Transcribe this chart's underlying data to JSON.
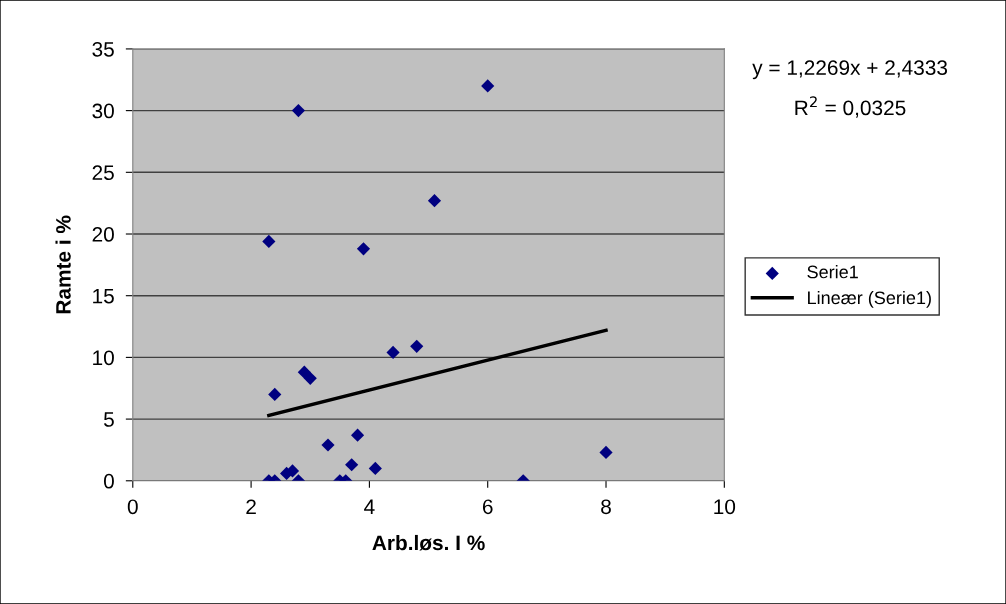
{
  "chart_data": {
    "type": "scatter",
    "xlabel": "Arb.løs. I %",
    "ylabel": "Ramte i %",
    "xlim": [
      0,
      10
    ],
    "xticks": [
      0,
      2,
      4,
      6,
      8,
      10
    ],
    "ylim": [
      0,
      35
    ],
    "yticks": [
      0,
      5,
      10,
      15,
      20,
      25,
      30,
      35
    ],
    "grid": "y",
    "legend": "right",
    "marker": "diamond",
    "annotations": [
      "y = 1,2269x + 2,4333",
      "R$^{2}$ = 0,0325"
    ],
    "series": [
      {
        "name": "Serie1",
        "color": "#000080",
        "x": [
          2.8,
          6.0,
          5.1,
          2.3,
          3.9,
          4.4,
          4.8,
          2.9,
          3.0,
          2.4,
          3.3,
          3.8,
          3.7,
          4.1,
          8.0,
          6.6,
          2.3,
          2.4,
          2.6,
          2.7,
          2.8,
          3.5,
          3.6
        ],
        "values": [
          30,
          32,
          22.7,
          19.4,
          18.8,
          10.4,
          10.9,
          8.8,
          8.3,
          7.0,
          2.9,
          3.7,
          1.3,
          1.0,
          2.3,
          0,
          0,
          0,
          0.6,
          0.8,
          0,
          0,
          0
        ]
      },
      {
        "name": "Lineær (Serie1)",
        "color": "#000000",
        "type": "line",
        "marker": "none",
        "x": [
          2.3,
          8.0
        ],
        "values": [
          5.3,
          12.2
        ]
      }
    ]
  }
}
